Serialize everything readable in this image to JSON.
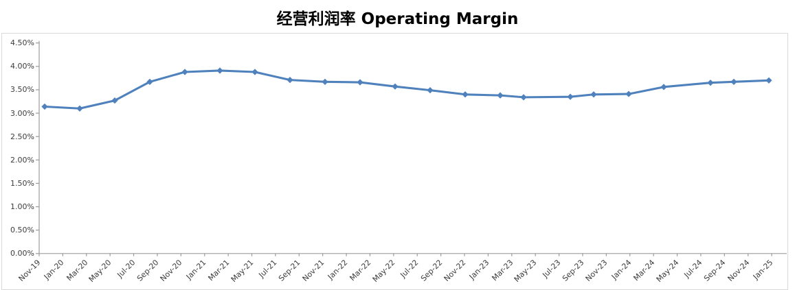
{
  "chart": {
    "title": "经营利润率 Operating Margin"
  },
  "chart_data": {
    "type": "line",
    "title": "经营利润率 Operating Margin",
    "legend_position": "none",
    "grid": "off",
    "background_color": "#FFFFFF",
    "axis_line_color": "#9b9b9b",
    "tick_text_color": "#3c3c3c",
    "series": [
      {
        "name": "经营利润率 Operating Margin",
        "color": "#4F81BD",
        "marker": "diamond",
        "x": [
          "Nov-19",
          "Feb-20",
          "May-20",
          "Aug-20",
          "Nov-20",
          "Feb-21",
          "May-21",
          "Aug-21",
          "Nov-21",
          "Feb-22",
          "May-22",
          "Aug-22",
          "Nov-22",
          "Feb-23",
          "Apr-23",
          "Aug-23",
          "Oct-23",
          "Jan-24",
          "Apr-24",
          "Aug-24",
          "Oct-24",
          "Jan-25"
        ],
        "x_months_from_start": [
          0,
          3,
          6,
          9,
          12,
          15,
          18,
          21,
          24,
          27,
          30,
          33,
          36,
          39,
          41,
          45,
          47,
          50,
          53,
          57,
          59,
          62
        ],
        "values_pct": [
          3.14,
          3.1,
          3.27,
          3.67,
          3.88,
          3.91,
          3.88,
          3.71,
          3.67,
          3.66,
          3.57,
          3.49,
          3.4,
          3.38,
          3.34,
          3.35,
          3.4,
          3.41,
          3.56,
          3.65,
          3.67,
          3.7
        ]
      }
    ],
    "x_axis": {
      "tick_labels": [
        "Nov-19",
        "Jan-20",
        "Mar-20",
        "May-20",
        "Jul-20",
        "Sep-20",
        "Nov-20",
        "Jan-21",
        "Mar-21",
        "May-21",
        "Jul-21",
        "Sep-21",
        "Nov-21",
        "Jan-22",
        "Mar-22",
        "May-22",
        "Jul-22",
        "Sep-22",
        "Nov-22",
        "Jan-23",
        "Mar-23",
        "May-23",
        "Jul-23",
        "Sep-23",
        "Nov-23",
        "Jan-24",
        "Mar-24",
        "May-24",
        "Jul-24",
        "Sep-24",
        "Nov-24",
        "Jan-25"
      ],
      "months_between_ticks": 2,
      "label_rotation_deg": -45
    },
    "y_axis": {
      "unit": "%",
      "min_pct": 0,
      "max_pct": 4.5,
      "step_pct": 0.5,
      "tick_labels": [
        "0.00%",
        "0.50%",
        "1.00%",
        "1.50%",
        "2.00%",
        "2.50%",
        "3.00%",
        "3.50%",
        "4.00%",
        "4.50%"
      ]
    }
  }
}
